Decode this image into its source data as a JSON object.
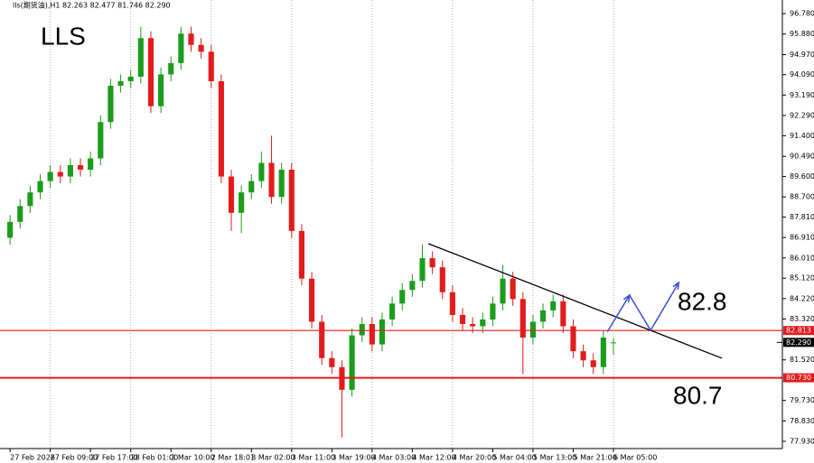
{
  "chart_data": {
    "type": "candlestick",
    "title": "LLS",
    "header": "lls(期货油),H1  82.263 82.477 81.746 82.290",
    "x": [
      0,
      1,
      2,
      3,
      4,
      5,
      6,
      7,
      8,
      9,
      10,
      11,
      12,
      13,
      14,
      15,
      16,
      17,
      18,
      19,
      20,
      21,
      22,
      23,
      24,
      25,
      26,
      27,
      28,
      29,
      30,
      31,
      32,
      33,
      34,
      35,
      36,
      37,
      38,
      39,
      40,
      41,
      42,
      43,
      44,
      45,
      46,
      47,
      48,
      49,
      50,
      51,
      52,
      53,
      54,
      55,
      56,
      57,
      58,
      59,
      60
    ],
    "open": [
      86.9,
      87.6,
      88.3,
      88.9,
      89.4,
      89.8,
      89.6,
      90.1,
      89.9,
      90.4,
      92.0,
      93.6,
      93.8,
      94.0,
      95.7,
      92.7,
      94.1,
      94.6,
      95.9,
      95.4,
      95.1,
      93.8,
      89.6,
      88.0,
      88.9,
      89.4,
      90.2,
      88.7,
      89.9,
      87.2,
      85.1,
      83.2,
      81.6,
      81.2,
      80.2,
      82.6,
      83.1,
      82.2,
      83.3,
      84.0,
      84.6,
      85.0,
      86.0,
      85.6,
      84.5,
      83.5,
      83.1,
      83.0,
      83.3,
      84.0,
      85.1,
      84.2,
      82.5,
      83.2,
      83.7,
      84.1,
      83.0,
      81.9,
      81.5,
      81.2,
      82.263
    ],
    "high": [
      87.9,
      88.6,
      89.2,
      89.7,
      90.1,
      90.1,
      90.4,
      90.4,
      90.7,
      92.3,
      93.9,
      94.1,
      94.3,
      96.2,
      96.0,
      94.4,
      94.9,
      96.2,
      96.2,
      95.7,
      95.4,
      94.1,
      89.9,
      89.2,
      89.7,
      90.7,
      91.4,
      90.2,
      90.2,
      87.5,
      85.4,
      83.5,
      81.9,
      81.5,
      82.9,
      83.4,
      83.4,
      83.6,
      84.3,
      84.9,
      85.3,
      86.6,
      86.3,
      85.9,
      84.8,
      83.8,
      83.4,
      83.6,
      84.3,
      85.7,
      85.4,
      84.5,
      83.5,
      84.0,
      84.4,
      84.4,
      83.3,
      82.2,
      81.8,
      82.8,
      82.477
    ],
    "low": [
      86.6,
      87.3,
      88.0,
      88.6,
      89.1,
      89.3,
      89.3,
      89.6,
      89.6,
      90.1,
      91.7,
      93.3,
      93.5,
      93.7,
      92.4,
      92.4,
      93.8,
      94.3,
      95.1,
      94.8,
      93.5,
      89.3,
      87.2,
      87.1,
      88.6,
      89.1,
      88.4,
      88.4,
      86.9,
      84.8,
      82.9,
      81.3,
      80.9,
      78.1,
      79.9,
      82.3,
      81.9,
      81.9,
      83.0,
      83.7,
      84.3,
      84.7,
      85.3,
      84.2,
      83.2,
      82.8,
      82.7,
      82.7,
      83.0,
      83.7,
      83.9,
      80.9,
      82.2,
      82.9,
      83.4,
      82.7,
      81.6,
      81.2,
      80.9,
      80.9,
      81.746
    ],
    "close": [
      87.6,
      88.3,
      88.9,
      89.4,
      89.8,
      89.6,
      90.1,
      89.9,
      90.4,
      92.0,
      93.6,
      93.8,
      94.0,
      95.7,
      92.7,
      94.1,
      94.6,
      95.9,
      95.4,
      95.1,
      93.8,
      89.6,
      88.0,
      88.9,
      89.4,
      90.2,
      88.7,
      89.9,
      87.2,
      85.1,
      83.2,
      81.6,
      81.2,
      80.2,
      82.6,
      83.1,
      82.2,
      83.3,
      84.0,
      84.6,
      85.0,
      86.0,
      85.6,
      84.5,
      83.5,
      83.1,
      83.0,
      83.3,
      84.0,
      85.1,
      84.2,
      82.5,
      83.2,
      83.7,
      84.1,
      83.0,
      81.9,
      81.5,
      81.2,
      82.5,
      82.29
    ],
    "up_color": "#1c9c1c",
    "down_color": "#e31b1b",
    "xlim": [
      -1,
      76.8
    ],
    "ylim": [
      77.61,
      97.38
    ],
    "xticks": [
      {
        "value": 0,
        "label": "27 Feb 2026"
      },
      {
        "value": 4,
        "label": "27 Feb 09:00"
      },
      {
        "value": 8,
        "label": "27 Feb 17:00"
      },
      {
        "value": 12,
        "label": "28 Feb 01:00"
      },
      {
        "value": 16,
        "label": "2 Mar 10:00"
      },
      {
        "value": 20,
        "label": "2 Mar 18:01"
      },
      {
        "value": 24,
        "label": "3 Mar 02:00"
      },
      {
        "value": 28,
        "label": "3 Mar 11:00"
      },
      {
        "value": 32,
        "label": "3 Mar 19:00"
      },
      {
        "value": 36,
        "label": "4 Mar 03:00"
      },
      {
        "value": 40,
        "label": "4 Mar 12:00"
      },
      {
        "value": 44,
        "label": "4 Mar 20:00"
      },
      {
        "value": 48,
        "label": "5 Mar 04:00"
      },
      {
        "value": 52,
        "label": "5 Mar 13:00"
      },
      {
        "value": 56,
        "label": "5 Mar 21:00"
      },
      {
        "value": 60,
        "label": "6 Mar 05:00"
      }
    ],
    "yticks": [
      {
        "value": 96.78,
        "label": "96.780"
      },
      {
        "value": 95.88,
        "label": "95.880"
      },
      {
        "value": 94.97,
        "label": "94.970"
      },
      {
        "value": 94.09,
        "label": "94.090"
      },
      {
        "value": 93.19,
        "label": "93.190"
      },
      {
        "value": 92.29,
        "label": "92.290"
      },
      {
        "value": 91.4,
        "label": "91.400"
      },
      {
        "value": 90.49,
        "label": "90.490"
      },
      {
        "value": 89.6,
        "label": "89.600"
      },
      {
        "value": 88.7,
        "label": "88.700"
      },
      {
        "value": 87.81,
        "label": "87.810"
      },
      {
        "value": 86.91,
        "label": "86.910"
      },
      {
        "value": 86.01,
        "label": "86.010"
      },
      {
        "value": 85.12,
        "label": "85.120"
      },
      {
        "value": 84.22,
        "label": "84.220"
      },
      {
        "value": 83.32,
        "label": "83.320"
      },
      {
        "value": 81.52,
        "label": "81.520"
      },
      {
        "value": 79.73,
        "label": "79.730"
      },
      {
        "value": 78.83,
        "label": "78.830"
      },
      {
        "value": 77.93,
        "label": "77.930"
      }
    ],
    "levels": [
      {
        "value": 82.813,
        "label": "82.813",
        "color": "#e31b1b"
      },
      {
        "value": 80.73,
        "label": "80.730",
        "color": "#e31b1b"
      }
    ],
    "last_price": {
      "value": 82.29,
      "label": "82.290"
    },
    "trendline": {
      "x": [
        41.6,
        70.8
      ],
      "y": [
        86.64,
        81.59
      ],
      "color": "#000000"
    },
    "projection": {
      "x": [
        59.4,
        61.6,
        63.7,
        66.5
      ],
      "y": [
        82.76,
        84.37,
        82.82,
        84.93
      ],
      "color": "#3a4fd8"
    },
    "annotations": [
      "82.8",
      "80.7"
    ]
  }
}
